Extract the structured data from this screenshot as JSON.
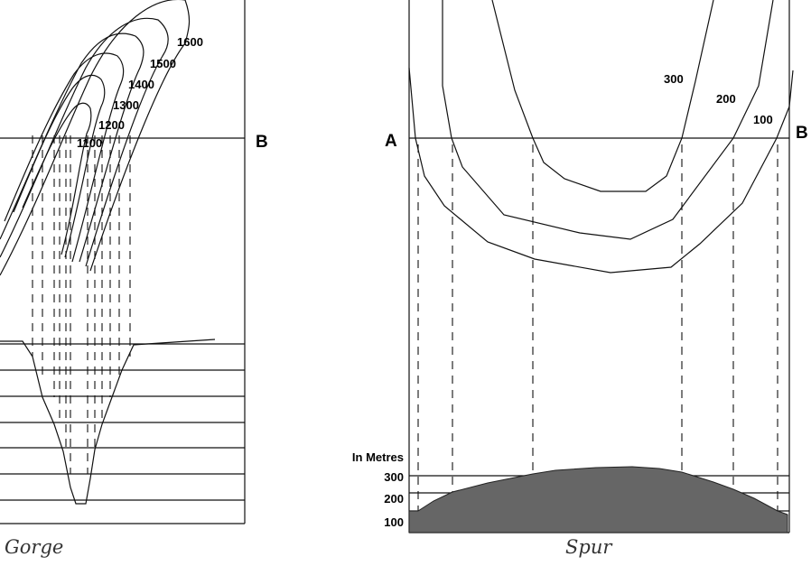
{
  "gorge": {
    "caption": "Gorge",
    "section_label_b": "B",
    "contour_labels": [
      "1600",
      "1500",
      "1400",
      "1300",
      "1200",
      "1100"
    ]
  },
  "spur": {
    "caption": "Spur",
    "section_label_a": "A",
    "section_label_b": "B",
    "contour_labels": [
      "300",
      "200",
      "100"
    ],
    "profile_axis_title": "In Metres",
    "profile_axis_ticks": [
      "300",
      "200",
      "100"
    ],
    "profile_fill_color": "#666666"
  }
}
